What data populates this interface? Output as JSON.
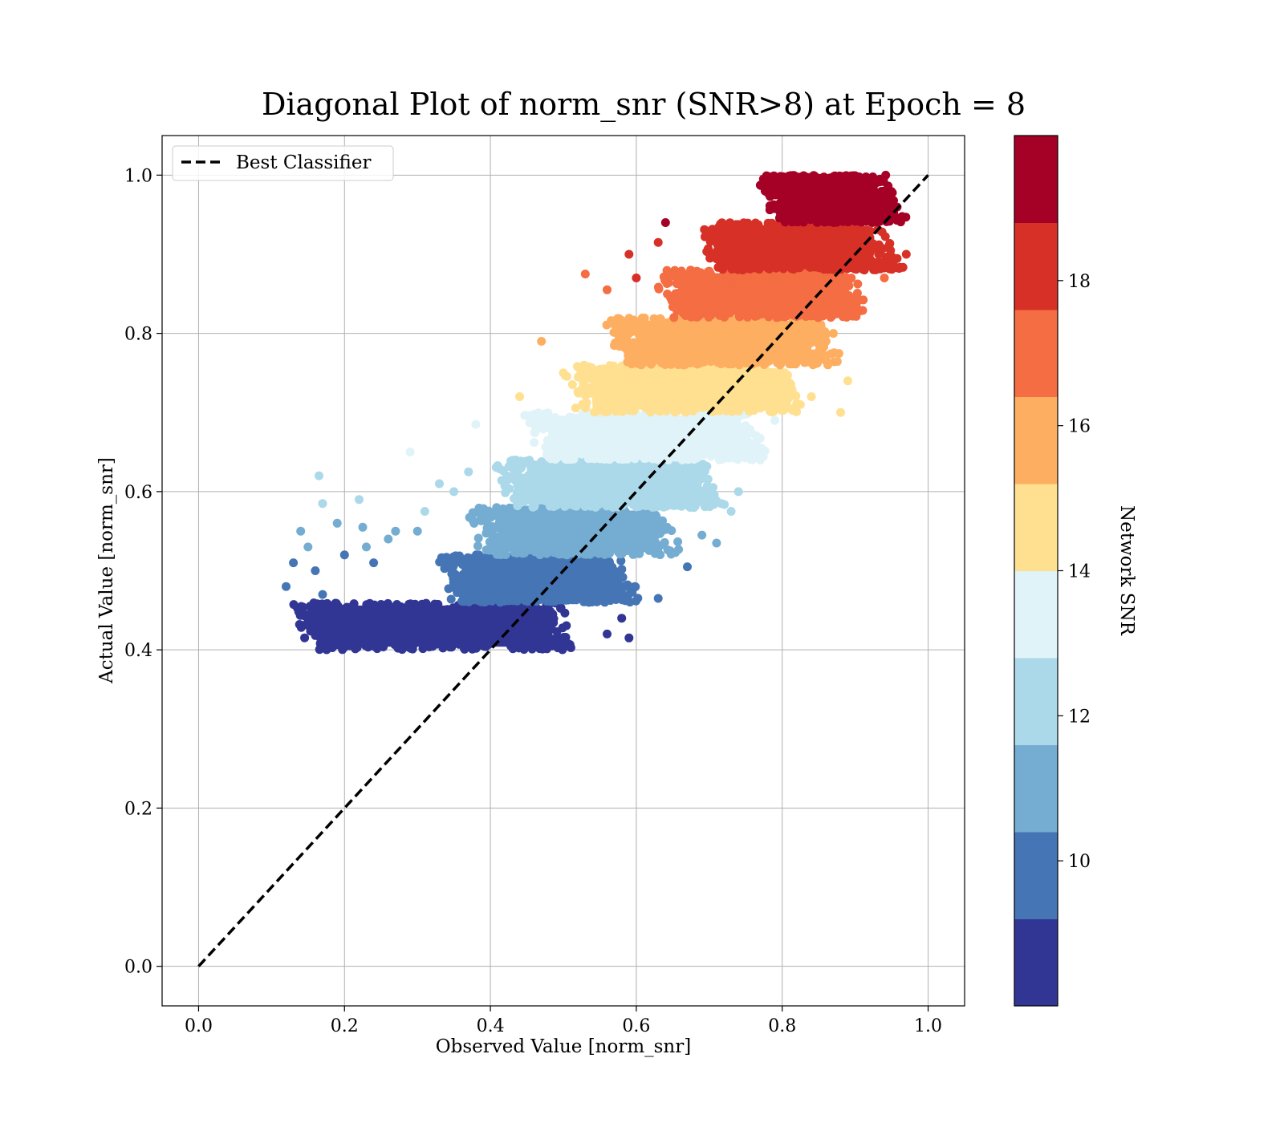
{
  "chart_data": {
    "type": "scatter",
    "title": "Diagonal Plot of norm_snr (SNR>8) at Epoch = 8",
    "xlabel": "Observed Value [norm_snr]",
    "ylabel": "Actual Value [norm_snr]",
    "xlim": [
      -0.05,
      1.05
    ],
    "ylim": [
      -0.05,
      1.05
    ],
    "xticks": [
      "0.0",
      "0.2",
      "0.4",
      "0.6",
      "0.8",
      "1.0"
    ],
    "yticks": [
      "0.0",
      "0.2",
      "0.4",
      "0.6",
      "0.8",
      "1.0"
    ],
    "grid": true,
    "legend": {
      "placement": "upper-left",
      "entries": [
        "Best Classifier"
      ]
    },
    "reference_line": {
      "name": "Best Classifier",
      "style": "dashed",
      "color": "#000000",
      "x": [
        0.0,
        1.0
      ],
      "y": [
        0.0,
        1.0
      ]
    },
    "colorbar": {
      "label": "Network SNR",
      "range": [
        8,
        20
      ],
      "ticks": [
        "10",
        "12",
        "14",
        "16",
        "18"
      ],
      "tick_values": [
        10,
        12,
        14,
        16,
        18
      ],
      "colors": [
        "#313695",
        "#4575b4",
        "#74add1",
        "#abd9e9",
        "#e0f3f8",
        "#fee090",
        "#fdae61",
        "#f46d43",
        "#d73027",
        "#a50026"
      ]
    },
    "bands": [
      {
        "snr_bin": [
          8.0,
          9.2
        ],
        "y_range": [
          0.4,
          0.46
        ],
        "x_range": [
          0.12,
          0.53
        ],
        "color": "#313695"
      },
      {
        "snr_bin": [
          9.2,
          10.4
        ],
        "y_range": [
          0.46,
          0.52
        ],
        "x_range": [
          0.32,
          0.61
        ],
        "color": "#4575b4"
      },
      {
        "snr_bin": [
          10.4,
          11.6
        ],
        "y_range": [
          0.52,
          0.58
        ],
        "x_range": [
          0.36,
          0.67
        ],
        "color": "#74add1"
      },
      {
        "snr_bin": [
          11.6,
          12.8
        ],
        "y_range": [
          0.58,
          0.64
        ],
        "x_range": [
          0.4,
          0.73
        ],
        "color": "#abd9e9"
      },
      {
        "snr_bin": [
          12.8,
          14.0
        ],
        "y_range": [
          0.64,
          0.7
        ],
        "x_range": [
          0.44,
          0.79
        ],
        "color": "#e0f3f8"
      },
      {
        "snr_bin": [
          14.0,
          15.2
        ],
        "y_range": [
          0.7,
          0.76
        ],
        "x_range": [
          0.49,
          0.84
        ],
        "color": "#fee090"
      },
      {
        "snr_bin": [
          15.2,
          16.4
        ],
        "y_range": [
          0.76,
          0.82
        ],
        "x_range": [
          0.55,
          0.89
        ],
        "color": "#fdae61"
      },
      {
        "snr_bin": [
          16.4,
          17.6
        ],
        "y_range": [
          0.82,
          0.88
        ],
        "x_range": [
          0.62,
          0.93
        ],
        "color": "#f46d43"
      },
      {
        "snr_bin": [
          17.6,
          18.8
        ],
        "y_range": [
          0.88,
          0.94
        ],
        "x_range": [
          0.68,
          0.97
        ],
        "color": "#d73027"
      },
      {
        "snr_bin": [
          18.8,
          20.0
        ],
        "y_range": [
          0.94,
          1.0
        ],
        "x_range": [
          0.76,
          0.98
        ],
        "color": "#a50026"
      }
    ],
    "outliers": [
      {
        "x": 0.12,
        "y": 0.48,
        "color": "#4575b4"
      },
      {
        "x": 0.13,
        "y": 0.51,
        "color": "#4575b4"
      },
      {
        "x": 0.14,
        "y": 0.55,
        "color": "#74add1"
      },
      {
        "x": 0.15,
        "y": 0.53,
        "color": "#74add1"
      },
      {
        "x": 0.16,
        "y": 0.5,
        "color": "#4575b4"
      },
      {
        "x": 0.17,
        "y": 0.47,
        "color": "#4575b4"
      },
      {
        "x": 0.165,
        "y": 0.62,
        "color": "#abd9e9"
      },
      {
        "x": 0.17,
        "y": 0.585,
        "color": "#abd9e9"
      },
      {
        "x": 0.19,
        "y": 0.56,
        "color": "#74add1"
      },
      {
        "x": 0.2,
        "y": 0.52,
        "color": "#4575b4"
      },
      {
        "x": 0.22,
        "y": 0.59,
        "color": "#abd9e9"
      },
      {
        "x": 0.225,
        "y": 0.555,
        "color": "#74add1"
      },
      {
        "x": 0.23,
        "y": 0.53,
        "color": "#74add1"
      },
      {
        "x": 0.24,
        "y": 0.51,
        "color": "#4575b4"
      },
      {
        "x": 0.26,
        "y": 0.54,
        "color": "#74add1"
      },
      {
        "x": 0.27,
        "y": 0.55,
        "color": "#74add1"
      },
      {
        "x": 0.29,
        "y": 0.65,
        "color": "#e0f3f8"
      },
      {
        "x": 0.3,
        "y": 0.55,
        "color": "#74add1"
      },
      {
        "x": 0.31,
        "y": 0.575,
        "color": "#abd9e9"
      },
      {
        "x": 0.33,
        "y": 0.61,
        "color": "#abd9e9"
      },
      {
        "x": 0.35,
        "y": 0.6,
        "color": "#abd9e9"
      },
      {
        "x": 0.37,
        "y": 0.625,
        "color": "#abd9e9"
      },
      {
        "x": 0.38,
        "y": 0.685,
        "color": "#e0f3f8"
      },
      {
        "x": 0.44,
        "y": 0.72,
        "color": "#fee090"
      },
      {
        "x": 0.47,
        "y": 0.79,
        "color": "#fdae61"
      },
      {
        "x": 0.5,
        "y": 0.75,
        "color": "#fee090"
      },
      {
        "x": 0.53,
        "y": 0.875,
        "color": "#f46d43"
      },
      {
        "x": 0.56,
        "y": 0.855,
        "color": "#f46d43"
      },
      {
        "x": 0.59,
        "y": 0.9,
        "color": "#d73027"
      },
      {
        "x": 0.6,
        "y": 0.87,
        "color": "#d73027"
      },
      {
        "x": 0.64,
        "y": 0.94,
        "color": "#a50026"
      },
      {
        "x": 0.63,
        "y": 0.915,
        "color": "#d73027"
      },
      {
        "x": 0.59,
        "y": 0.415,
        "color": "#313695"
      },
      {
        "x": 0.58,
        "y": 0.44,
        "color": "#313695"
      },
      {
        "x": 0.56,
        "y": 0.42,
        "color": "#313695"
      },
      {
        "x": 0.63,
        "y": 0.465,
        "color": "#4575b4"
      },
      {
        "x": 0.67,
        "y": 0.505,
        "color": "#4575b4"
      },
      {
        "x": 0.71,
        "y": 0.535,
        "color": "#74add1"
      },
      {
        "x": 0.69,
        "y": 0.545,
        "color": "#74add1"
      },
      {
        "x": 0.73,
        "y": 0.575,
        "color": "#abd9e9"
      },
      {
        "x": 0.74,
        "y": 0.6,
        "color": "#abd9e9"
      },
      {
        "x": 0.77,
        "y": 0.64,
        "color": "#e0f3f8"
      },
      {
        "x": 0.79,
        "y": 0.69,
        "color": "#e0f3f8"
      },
      {
        "x": 0.88,
        "y": 0.7,
        "color": "#fee090"
      },
      {
        "x": 0.84,
        "y": 0.72,
        "color": "#fee090"
      },
      {
        "x": 0.89,
        "y": 0.74,
        "color": "#fee090"
      },
      {
        "x": 0.87,
        "y": 0.8,
        "color": "#fdae61"
      },
      {
        "x": 0.94,
        "y": 0.87,
        "color": "#f46d43"
      },
      {
        "x": 0.97,
        "y": 0.9,
        "color": "#d73027"
      }
    ]
  }
}
